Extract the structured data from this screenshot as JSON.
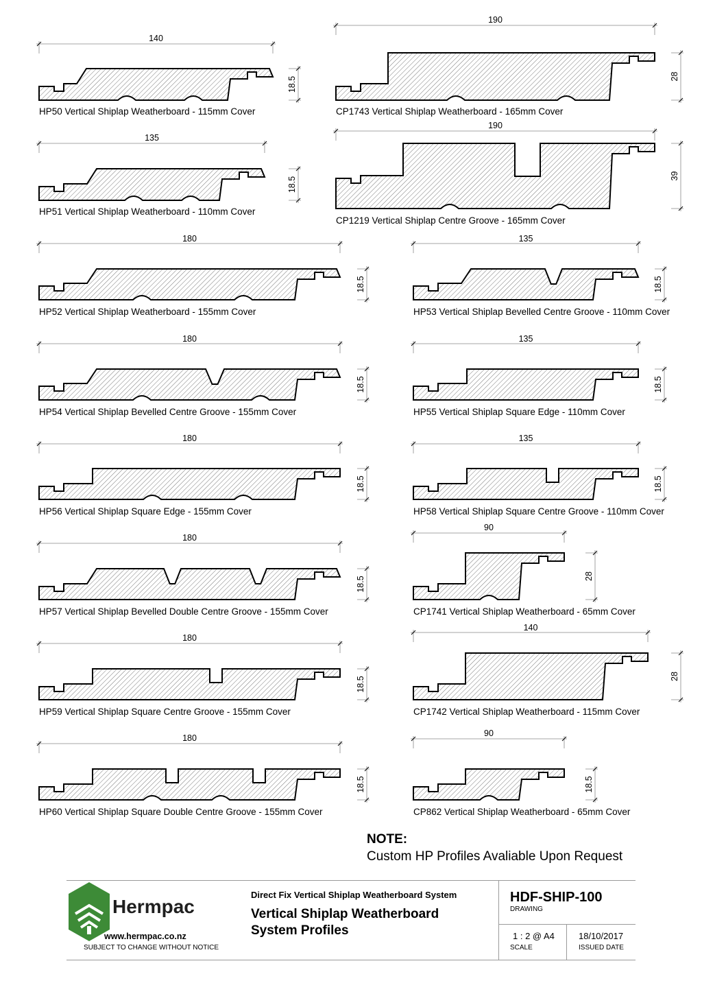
{
  "profiles": [
    {
      "caption": "HP50 Vertical Shiplap Weatherboard - 115mm Cover",
      "width_label": "140",
      "height_label": "18.5"
    },
    {
      "caption": "CP1743 Vertical Shiplap Weatherboard - 165mm Cover",
      "width_label": "190",
      "height_label": "28"
    },
    {
      "caption": "HP51 Vertical Shiplap Weatherboard - 110mm Cover",
      "width_label": "135",
      "height_label": "18.5"
    },
    {
      "caption": "CP1219 Vertical Shiplap Centre Groove - 165mm Cover",
      "width_label": "190",
      "height_label": "39"
    },
    {
      "caption": "HP52 Vertical Shiplap Weatherboard - 155mm Cover",
      "width_label": "180",
      "height_label": "18.5"
    },
    {
      "caption": "HP53 Vertical Shiplap Bevelled Centre Groove - 110mm Cover",
      "width_label": "135",
      "height_label": "18.5"
    },
    {
      "caption": "HP54 Vertical Shiplap Bevelled Centre Groove - 155mm Cover",
      "width_label": "180",
      "height_label": "18.5"
    },
    {
      "caption": "HP55 Vertical Shiplap Square Edge - 110mm Cover",
      "width_label": "135",
      "height_label": "18.5"
    },
    {
      "caption": "HP56 Vertical Shiplap Square Edge - 155mm Cover",
      "width_label": "180",
      "height_label": "18.5"
    },
    {
      "caption": "HP58 Vertical Shiplap Square Centre Groove - 110mm Cover",
      "width_label": "135",
      "height_label": "18.5"
    },
    {
      "caption": "HP57 Vertical Shiplap Bevelled Double Centre Groove - 155mm Cover",
      "width_label": "180",
      "height_label": "18.5"
    },
    {
      "caption": "CP1741 Vertical Shiplap Weatherboard - 65mm Cover",
      "width_label": "90",
      "height_label": "28"
    },
    {
      "caption": "HP59 Vertical Shiplap Square Centre Groove - 155mm Cover",
      "width_label": "180",
      "height_label": "18.5"
    },
    {
      "caption": "CP1742 Vertical Shiplap Weatherboard - 115mm Cover",
      "width_label": "140",
      "height_label": "28"
    },
    {
      "caption": "HP60 Vertical Shiplap Square Double Centre Groove - 155mm Cover",
      "width_label": "180",
      "height_label": "18.5"
    },
    {
      "caption": "CP862 Vertical Shiplap Weatherboard - 65mm Cover",
      "width_label": "90",
      "height_label": "18.5"
    }
  ],
  "note": {
    "title": "NOTE:",
    "text": "Custom HP Profiles Avaliable Upon Request"
  },
  "title_block": {
    "brand": "Hermpac",
    "website": "www.hermpac.co.nz",
    "disclaimer": "SUBJECT TO CHANGE WITHOUT NOTICE",
    "system_name": "Direct Fix Vertical Shiplap Weatherboard System",
    "drawing_title": "Vertical Shiplap Weatherboard System Profiles",
    "drawing_code": "HDF-SHIP-100",
    "drawing_label": "DRAWING",
    "scale_value": "1 : 2 @ A4",
    "scale_label": "SCALE",
    "issued_date": "18/10/2017",
    "issued_label": "ISSUED DATE"
  },
  "colors": {
    "logo_green": "#3d8b37",
    "rule_grey": "#9a9a9a"
  }
}
